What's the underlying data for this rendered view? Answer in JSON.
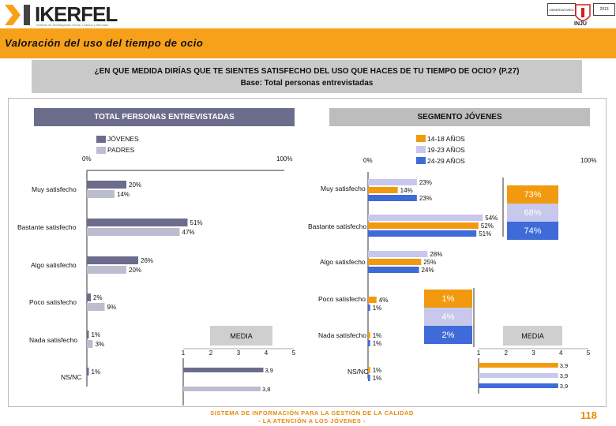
{
  "header": {
    "brand": "IKERFEL",
    "brand_sub": "Instituto de Investigación Social, Laboral y Mercado",
    "logo_right_a": "OBSERVATORIO",
    "logo_right_b": "2013",
    "logo_right_c": "INJU"
  },
  "title": "Valoración del uso del tiempo de ocio",
  "question": {
    "line1": "¿EN QUE MEDIDA DIRÍAS QUE TE SIENTES SATISFECHO DEL USO QUE HACES DE TU TIEMPO DE OCIO? (P.27)",
    "line2": "Base: Total personas entrevistadas"
  },
  "colors": {
    "jovenes": "#6c6c8c",
    "padres": "#bdbdd0",
    "a14_18": "#f29a0f",
    "a19_23": "#c8c8ec",
    "a24_29": "#3e6bd8",
    "orange": "#f7a11a"
  },
  "footer": {
    "line1": "SISTEMA DE INFORMACIÓN PARA LA GESTIÓN DE LA CALIDAD",
    "line2": "- LA ATENCIÓN A LOS JÓVENES -",
    "page": "118"
  },
  "chart_data": [
    {
      "type": "bar",
      "orientation": "horizontal",
      "title": "TOTAL PERSONAS ENTREVISTADAS",
      "axis_min_label": "0%",
      "axis_max_label": "100%",
      "xlim": [
        0,
        100
      ],
      "categories": [
        "Muy satisfecho",
        "Bastante satisfecho",
        "Algo satisfecho",
        "Poco satisfecho",
        "Nada satisfecho",
        "NS/NC"
      ],
      "series": [
        {
          "name": "JÓVENES",
          "values": [
            20,
            51,
            26,
            2,
            1,
            1
          ],
          "labels": [
            "20%",
            "51%",
            "26%",
            "2%",
            "1%",
            "1%"
          ]
        },
        {
          "name": "PADRES",
          "values": [
            14,
            47,
            20,
            9,
            3,
            null
          ],
          "labels": [
            "14%",
            "47%",
            "20%",
            "9%",
            "3%",
            ""
          ]
        }
      ]
    },
    {
      "type": "bar",
      "orientation": "horizontal",
      "title": "SEGMENTO JÓVENES",
      "axis_min_label": "0%",
      "axis_max_label": "100%",
      "xlim": [
        0,
        100
      ],
      "categories": [
        "Muy satisfecho",
        "Bastante satisfecho",
        "Algo satisfecho",
        "Poco satisfecho",
        "Nada satisfecho",
        "NS/NC"
      ],
      "series": [
        {
          "name": "14-18 AÑOS",
          "values": [
            14,
            52,
            25,
            4,
            1,
            1
          ],
          "labels": [
            "14%",
            "52%",
            "25%",
            "4%",
            "1%",
            "1%"
          ]
        },
        {
          "name": "19-23 AÑOS",
          "values": [
            23,
            54,
            28,
            0,
            0,
            0
          ],
          "labels": [
            "23%",
            "54%",
            "28%",
            "",
            "",
            ""
          ]
        },
        {
          "name": "24-29 AÑOS",
          "values": [
            23,
            51,
            24,
            1,
            1,
            1
          ],
          "labels": [
            "23%",
            "51%",
            "24%",
            "1%",
            "1%",
            "1%"
          ]
        }
      ],
      "group_totals": {
        "satisfied": [
          "73%",
          "68%",
          "74%"
        ],
        "unsatisfied": [
          "1%",
          "4%",
          "2%"
        ]
      }
    },
    {
      "type": "bar",
      "orientation": "horizontal",
      "title": "MEDIA",
      "scale": [
        "1",
        "2",
        "3",
        "4",
        "5"
      ],
      "xlim": [
        1,
        5
      ],
      "series": [
        {
          "name": "JÓVENES",
          "value": 3.9,
          "label": "3,9"
        },
        {
          "name": "PADRES",
          "value": 3.8,
          "label": "3,8"
        }
      ]
    },
    {
      "type": "bar",
      "orientation": "horizontal",
      "title": "MEDIA",
      "scale": [
        "1",
        "2",
        "3",
        "4",
        "5"
      ],
      "xlim": [
        1,
        5
      ],
      "series": [
        {
          "name": "14-18 AÑOS",
          "value": 3.9,
          "label": "3,9"
        },
        {
          "name": "19-23 AÑOS",
          "value": 3.9,
          "label": "3,9"
        },
        {
          "name": "24-29 AÑOS",
          "value": 3.9,
          "label": "3,9"
        }
      ]
    }
  ]
}
